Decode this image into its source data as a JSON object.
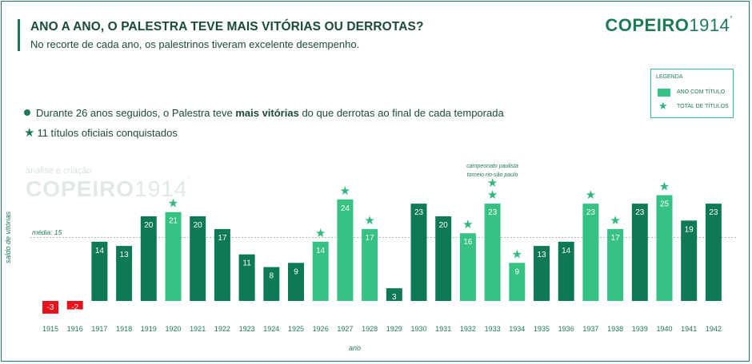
{
  "header": {
    "title": "ANO A ANO, O PALESTRA TEVE MAIS VITÓRIAS OU DERROTAS?",
    "subtitle": "No recorte de cada ano, os palestrinos tiveram excelente desempenho.",
    "brand_bold": "COPEIRO",
    "brand_num": "1914",
    "brand_mark": "°"
  },
  "legend": {
    "title": "LEGENDA",
    "item_title": "ANO COM TÍTULO",
    "item_star": "TOTAL DE TÍTULOS"
  },
  "notes": {
    "line1_pre": "Durante 26 anos seguidos, o Palestra teve ",
    "line1_bold": "mais vitórias",
    "line1_post": " do que derrotas ao final de cada temporada",
    "line2": "11 títulos oficiais conquistados"
  },
  "watermark": {
    "line1": "análise e criação",
    "brand_bold": "COPEIRO",
    "brand_num": "1914",
    "brand_mark": "°"
  },
  "chart_data": {
    "type": "bar",
    "title": "ANO A ANO, O PALESTRA TEVE MAIS VITÓRIAS OU DERROTAS?",
    "xlabel": "ano",
    "ylabel": "saldo de vitórias",
    "ylim": [
      -3,
      25
    ],
    "grid": false,
    "legend_position": "top-right",
    "average": {
      "label": "média: 15",
      "value": 15
    },
    "categories": [
      "1915",
      "1916",
      "1917",
      "1918",
      "1919",
      "1920",
      "1921",
      "1922",
      "1923",
      "1924",
      "1925",
      "1926",
      "1927",
      "1928",
      "1929",
      "1930",
      "1931",
      "1932",
      "1933",
      "1934",
      "1935",
      "1936",
      "1937",
      "1938",
      "1939",
      "1940",
      "1941",
      "1942"
    ],
    "values": [
      -3,
      -2,
      14,
      13,
      20,
      21,
      20,
      17,
      11,
      8,
      9,
      14,
      24,
      17,
      3,
      23,
      20,
      16,
      23,
      9,
      13,
      14,
      23,
      17,
      23,
      25,
      19,
      23
    ],
    "titles": [
      0,
      0,
      0,
      0,
      0,
      1,
      0,
      0,
      0,
      0,
      0,
      1,
      1,
      1,
      0,
      0,
      0,
      1,
      2,
      1,
      0,
      0,
      1,
      1,
      0,
      1,
      0,
      0
    ],
    "annotation": {
      "year": "1933",
      "lines": [
        "campeonato paulista",
        "torneio rio-são paulo"
      ]
    },
    "colors": {
      "negative": "#e8101a",
      "normal": "#0e7a53",
      "title_year": "#36c283",
      "star": "#2fb87b",
      "label_text": "#ffffff",
      "axis_text": "#1d7a55"
    }
  }
}
